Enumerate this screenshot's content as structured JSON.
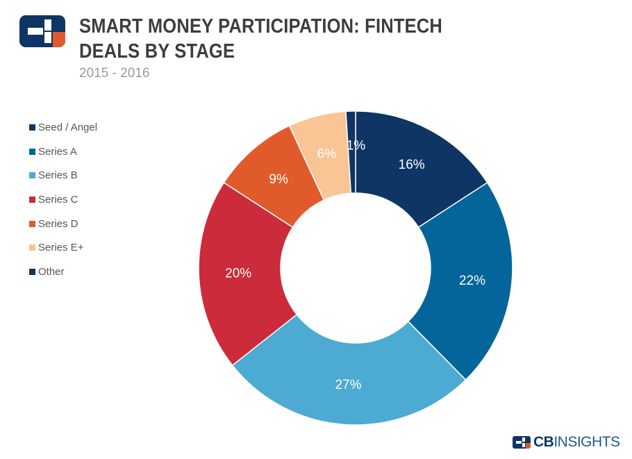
{
  "header": {
    "title": "SMART MONEY PARTICIPATION: FINTECH DEALS BY STAGE",
    "subtitle": "2015 - 2016"
  },
  "brand": {
    "bold": "CB",
    "regular": "INSIGHTS"
  },
  "icons": {
    "logo": "cb-insights-logo-icon"
  },
  "chart_data": {
    "type": "pie",
    "donut": true,
    "title": "SMART MONEY PARTICIPATION: FINTECH DEALS BY STAGE",
    "subtitle": "2015 - 2016",
    "legend_position": "left",
    "series": [
      {
        "name": "Seed / Angel",
        "value": 16,
        "label": "16%",
        "color": "#0f3564"
      },
      {
        "name": "Series A",
        "value": 22,
        "label": "22%",
        "color": "#03659a"
      },
      {
        "name": "Series B",
        "value": 27,
        "label": "27%",
        "color": "#4daad2"
      },
      {
        "name": "Series C",
        "value": 20,
        "label": "20%",
        "color": "#cb2b3a"
      },
      {
        "name": "Series D",
        "value": 9,
        "label": "9%",
        "color": "#e15a2c"
      },
      {
        "name": "Series E+",
        "value": 6,
        "label": "6%",
        "color": "#f9c595"
      },
      {
        "name": "Other",
        "value": 1,
        "label": "1%",
        "color": "#0f3564"
      }
    ]
  }
}
